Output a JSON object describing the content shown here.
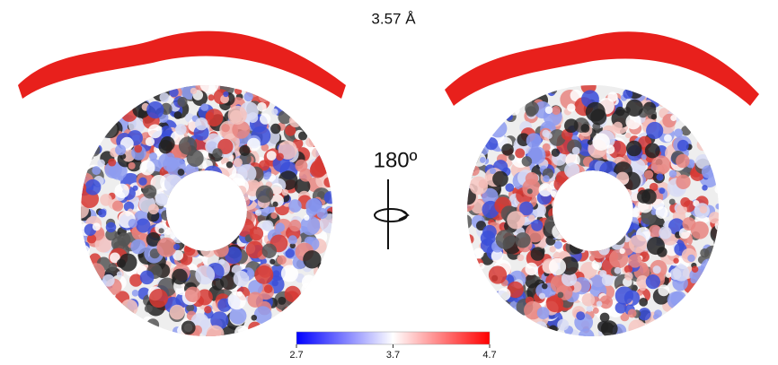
{
  "resolution_label": "3.57 Å",
  "rotation_label": "180º",
  "colorbar": {
    "colors": [
      "#0000ff",
      "#ffffff",
      "#ff0000"
    ],
    "ticks": [
      2.7,
      3.7,
      4.7
    ]
  }
}
